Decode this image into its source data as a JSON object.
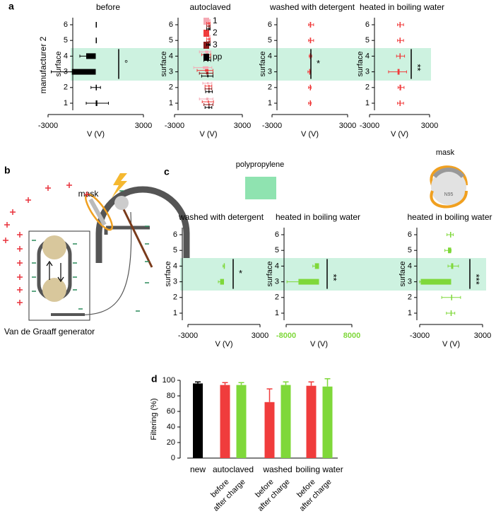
{
  "panel_labels": [
    "a",
    "b",
    "c",
    "d"
  ],
  "manufacturer": "manufacturer 2",
  "diagram": {
    "mask_label": "mask",
    "generator_label": "Van de Graaff generator"
  },
  "legend_c": {
    "material": "polypropylene",
    "material_color": "#8fe3b0",
    "mask": "mask",
    "mask_text": "N95"
  },
  "chart_data": [
    {
      "type": "hbar",
      "title": "before",
      "ylabel": "surface",
      "xlabel": "V (V)",
      "categories": [
        "1",
        "2",
        "3",
        "4",
        "5",
        "6"
      ],
      "series": [
        {
          "color": "#000000",
          "values": [
            100,
            0,
            -1500,
            -600,
            0,
            0
          ],
          "errors": [
            700,
            300,
            1300,
            400,
            0,
            0
          ]
        }
      ],
      "xlim": [
        -3000,
        3000
      ],
      "xticks": [
        -3000,
        3000
      ],
      "annotation": "°"
    },
    {
      "type": "hbar",
      "title": "autoclaved",
      "ylabel": "surface",
      "xlabel": "V (V)",
      "categories": [
        "1",
        "2",
        "3",
        "4",
        "5",
        "6"
      ],
      "series": [
        {
          "name": "1",
          "color": "#f5a9b4",
          "values": [
            -200,
            -100,
            -500,
            -300,
            0,
            0
          ],
          "errors": [
            600,
            400,
            800,
            500,
            150,
            150
          ]
        },
        {
          "name": "2",
          "color": "#f03c3c",
          "values": [
            -50,
            0,
            -300,
            -200,
            0,
            0
          ],
          "errors": [
            500,
            300,
            700,
            400,
            150,
            150
          ]
        },
        {
          "name": "3",
          "color": "#8b1a1a",
          "values": [
            0,
            0,
            -200,
            -100,
            0,
            0
          ],
          "errors": [
            400,
            300,
            600,
            300,
            150,
            150
          ]
        },
        {
          "name": "pp",
          "color": "#000000",
          "values": [
            0,
            50,
            -100,
            -100,
            0,
            0
          ],
          "errors": [
            300,
            300,
            500,
            300,
            150,
            150
          ]
        }
      ],
      "xlim": [
        -3000,
        3000
      ],
      "xticks": [
        -3000,
        3000
      ],
      "legend": true
    },
    {
      "type": "hbar",
      "title": "washed with detergent",
      "ylabel": "surface",
      "xlabel": "V (V)",
      "categories": [
        "1",
        "2",
        "3",
        "4",
        "5",
        "6"
      ],
      "series": [
        {
          "color": "#f03c3c",
          "values": [
            0,
            0,
            -50,
            50,
            100,
            100
          ],
          "errors": [
            100,
            100,
            100,
            100,
            200,
            200
          ]
        }
      ],
      "xlim": [
        -3000,
        3000
      ],
      "xticks": [
        -3000,
        3000
      ],
      "annotation": "*"
    },
    {
      "type": "hbar",
      "title": "heated in boiling water",
      "ylabel": "surface",
      "xlabel": "V (V)",
      "categories": [
        "1",
        "2",
        "3",
        "4",
        "5",
        "6"
      ],
      "series": [
        {
          "color": "#f03c3c",
          "values": [
            100,
            150,
            -200,
            100,
            100,
            100
          ],
          "errors": [
            300,
            300,
            900,
            400,
            300,
            300
          ]
        }
      ],
      "xlim": [
        -3000,
        3000
      ],
      "xticks": [
        -3000,
        3000
      ],
      "annotation": "**"
    },
    {
      "type": "hbar",
      "title": "washed with detergent",
      "ylabel": "surface",
      "xlabel": "V (V)",
      "categories": [
        "1",
        "2",
        "3",
        "4",
        "5",
        "6"
      ],
      "series": [
        {
          "color": "#7fd83a",
          "values": [
            null,
            null,
            -320,
            -20,
            null,
            null
          ],
          "errors": [
            null,
            null,
            150,
            60,
            null,
            null
          ]
        }
      ],
      "xlim": [
        -3000,
        3000
      ],
      "xticks": [
        -3000,
        3000
      ],
      "annotation": "*"
    },
    {
      "type": "hbar",
      "title": "heated in boiling water",
      "ylabel": "surface",
      "xlabel": "V (V)",
      "categories": [
        "1",
        "2",
        "3",
        "4",
        "5",
        "6"
      ],
      "series": [
        {
          "color": "#7fd83a",
          "values": [
            null,
            null,
            -5000,
            -1000,
            null,
            null
          ],
          "errors": [
            null,
            null,
            2800,
            500,
            null,
            null
          ]
        }
      ],
      "xlim": [
        -8000,
        8000
      ],
      "xticks": [
        -8000,
        8000
      ],
      "xtick_color": "#7fd83a",
      "annotation": "**"
    },
    {
      "type": "hbar",
      "title": "heated in boiling water",
      "ylabel": "surface",
      "xlabel": "V (V)",
      "categories": [
        "1",
        "2",
        "3",
        "4",
        "5",
        "6"
      ],
      "series": [
        {
          "color": "#7fd83a",
          "values": [
            -50,
            0,
            -2900,
            200,
            -300,
            -100
          ],
          "errors": [
            400,
            900,
            100,
            500,
            300,
            300
          ]
        }
      ],
      "xlim": [
        -3000,
        3000
      ],
      "xticks": [
        -3000,
        3000
      ],
      "annotation": "***"
    },
    {
      "type": "bar",
      "ylabel": "Filtering (%)",
      "categories": [
        "new",
        "autoclaved",
        "washed",
        "boiling water"
      ],
      "series": [
        {
          "color": "#000000",
          "values": [
            96,
            null,
            null,
            null
          ],
          "errors": [
            2,
            null,
            null,
            null
          ]
        },
        {
          "name": "before",
          "color": "#f03c3c",
          "values": [
            null,
            94,
            72,
            93
          ],
          "errors": [
            null,
            3,
            17,
            5
          ]
        },
        {
          "name": "after charge",
          "color": "#7fd83a",
          "values": [
            null,
            94,
            94,
            92
          ],
          "errors": [
            null,
            3,
            4,
            10
          ]
        }
      ],
      "ylim": [
        0,
        100
      ],
      "yticks": [
        0,
        20,
        40,
        60,
        80,
        100
      ]
    }
  ]
}
